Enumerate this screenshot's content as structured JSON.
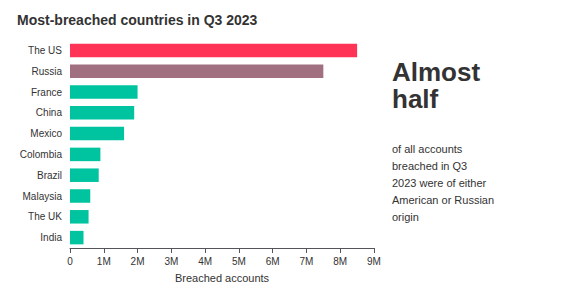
{
  "chart_data": {
    "type": "bar",
    "orientation": "horizontal",
    "title": "Most-breached countries in Q3 2023",
    "categories": [
      "The US",
      "Russia",
      "France",
      "China",
      "Mexico",
      "Colombia",
      "Brazil",
      "Malaysia",
      "The UK",
      "India"
    ],
    "values": [
      8500000,
      7500000,
      2000000,
      1900000,
      1600000,
      900000,
      850000,
      600000,
      550000,
      400000
    ],
    "colors": [
      "#FF3355",
      "#A07080",
      "#00C4A0",
      "#00C4A0",
      "#00C4A0",
      "#00C4A0",
      "#00C4A0",
      "#00C4A0",
      "#00C4A0",
      "#00C4A0"
    ],
    "xlabel": "Breached accounts",
    "xlim": [
      0,
      9000000
    ],
    "xticks": [
      0,
      {
        "value": 1000000,
        "label": "1M"
      },
      {
        "value": 2000000,
        "label": "2M"
      },
      {
        "value": 3000000,
        "label": "3M"
      },
      {
        "value": 4000000,
        "label": "4M"
      },
      {
        "value": 5000000,
        "label": "5M"
      },
      {
        "value": 6000000,
        "label": "6M"
      },
      {
        "value": 7000000,
        "label": "7M"
      },
      {
        "value": 8000000,
        "label": "8M"
      },
      {
        "value": 9000000,
        "label": "9M"
      }
    ],
    "annotations": [
      "Almost\nhalf",
      "of all accounts\nbreached in Q3\n2023 were of either\nAmerican or Russian\norigin"
    ],
    "grid": false
  }
}
